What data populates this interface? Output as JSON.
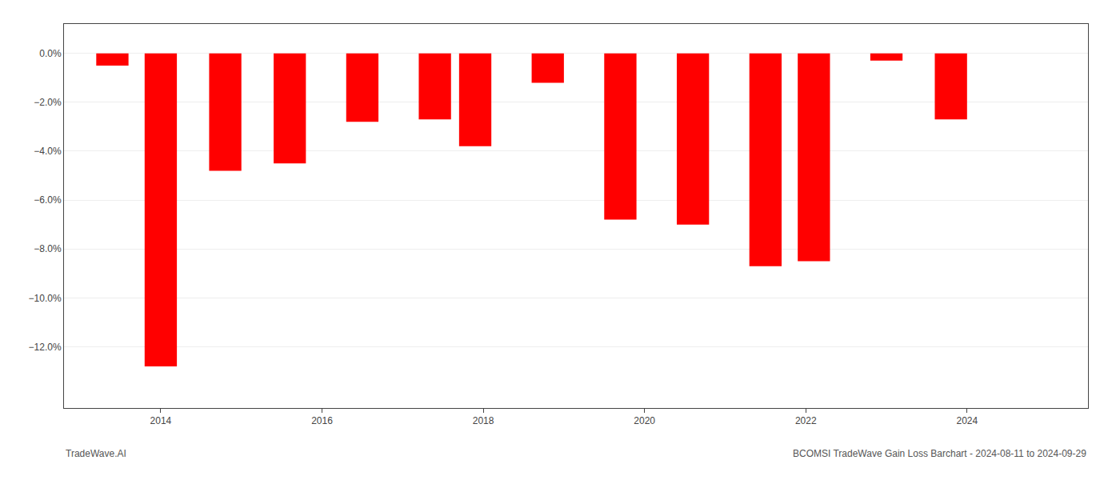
{
  "chart_data": {
    "type": "bar",
    "x": [
      2013.4,
      2014.0,
      2014.8,
      2015.6,
      2016.5,
      2017.4,
      2017.9,
      2018.8,
      2019.7,
      2020.6,
      2021.5,
      2022.1,
      2023.0,
      2023.8
    ],
    "values": [
      -0.005,
      -0.128,
      -0.048,
      -0.045,
      -0.028,
      -0.027,
      -0.038,
      -0.012,
      -0.068,
      -0.07,
      -0.087,
      -0.085,
      -0.003,
      -0.027
    ],
    "color": "#ff0000",
    "xlim": [
      2012.8,
      2025.5
    ],
    "xticks": [
      2014,
      2016,
      2018,
      2020,
      2022,
      2024
    ],
    "ylim": [
      -0.145,
      0.012
    ],
    "yticks": [
      {
        "value": 0.0,
        "label": "0.0%"
      },
      {
        "value": -0.02,
        "label": "−2.0%"
      },
      {
        "value": -0.04,
        "label": "−4.0%"
      },
      {
        "value": -0.06,
        "label": "−6.0%"
      },
      {
        "value": -0.08,
        "label": "−8.0%"
      },
      {
        "value": -0.1,
        "label": "−10.0%"
      },
      {
        "value": -0.12,
        "label": "−12.0%"
      }
    ],
    "grid": true,
    "annotations": [
      "TradeWave.AI",
      "BCOMSI TradeWave Gain Loss Barchart - 2024-08-11 to 2024-09-29"
    ]
  }
}
